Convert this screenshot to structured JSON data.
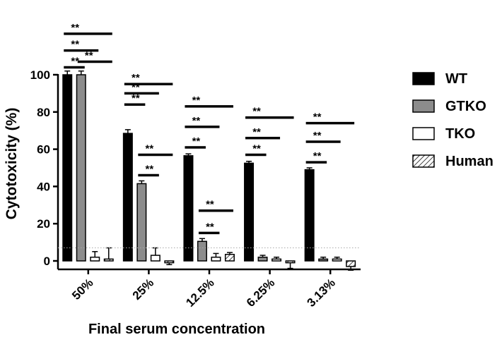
{
  "chart_data": {
    "type": "bar",
    "ylabel": "Cytotoxicity (%)",
    "xlabel": "Final serum concentration",
    "categories": [
      "50%",
      "25%",
      "12.5%",
      "6.25%",
      "3.13%"
    ],
    "ylim": [
      0,
      100
    ],
    "yticks": [
      "0",
      "20",
      "40",
      "60",
      "80",
      "100"
    ],
    "grid": false,
    "legend_position": "right",
    "series": [
      {
        "name": "WT",
        "fill": "solid-black",
        "values": [
          100,
          68.5,
          56.5,
          52.5,
          49
        ],
        "errors": [
          2,
          2,
          1,
          1,
          1
        ]
      },
      {
        "name": "GTKO",
        "fill": "gray",
        "values": [
          100,
          41.5,
          10.5,
          2,
          1
        ],
        "errors": [
          2,
          1.5,
          1.5,
          1,
          1
        ]
      },
      {
        "name": "TKO",
        "fill": "white",
        "values": [
          2,
          3,
          2,
          1,
          1
        ],
        "errors": [
          3,
          4,
          2,
          1,
          1
        ]
      },
      {
        "name": "Human",
        "fill": "hatched",
        "values": [
          1,
          -1,
          3.5,
          -1,
          -3
        ],
        "errors": [
          6,
          1,
          1,
          3,
          2
        ]
      }
    ],
    "baseline_dotted": 7,
    "significance": [
      {
        "category": 0,
        "from": 0,
        "to": 1,
        "level": 104,
        "label": "**"
      },
      {
        "category": 0,
        "from": 0,
        "to": 2,
        "level": 113,
        "label": "**"
      },
      {
        "category": 0,
        "from": 0,
        "to": 3,
        "level": 122,
        "label": "**"
      },
      {
        "category": 0,
        "from": 1,
        "to": 3,
        "level": 107,
        "label": "**"
      },
      {
        "category": 1,
        "from": 0,
        "to": 1,
        "level": 84,
        "label": "**"
      },
      {
        "category": 1,
        "from": 0,
        "to": 2,
        "level": 90,
        "label": "**"
      },
      {
        "category": 1,
        "from": 0,
        "to": 3,
        "level": 95,
        "label": "**"
      },
      {
        "category": 1,
        "from": 1,
        "to": 2,
        "level": 46,
        "label": "**"
      },
      {
        "category": 1,
        "from": 1,
        "to": 3,
        "level": 57,
        "label": "**"
      },
      {
        "category": 2,
        "from": 0,
        "to": 1,
        "level": 61,
        "label": "**"
      },
      {
        "category": 2,
        "from": 0,
        "to": 2,
        "level": 72,
        "label": "**"
      },
      {
        "category": 2,
        "from": 0,
        "to": 3,
        "level": 83,
        "label": "**"
      },
      {
        "category": 2,
        "from": 1,
        "to": 2,
        "level": 15,
        "label": "**"
      },
      {
        "category": 2,
        "from": 1,
        "to": 3,
        "level": 27,
        "label": "**"
      },
      {
        "category": 3,
        "from": 0,
        "to": 1,
        "level": 57,
        "label": "**"
      },
      {
        "category": 3,
        "from": 0,
        "to": 2,
        "level": 66,
        "label": "**"
      },
      {
        "category": 3,
        "from": 0,
        "to": 3,
        "level": 77,
        "label": "**"
      },
      {
        "category": 4,
        "from": 0,
        "to": 1,
        "level": 53,
        "label": "**"
      },
      {
        "category": 4,
        "from": 0,
        "to": 2,
        "level": 64,
        "label": "**"
      },
      {
        "category": 4,
        "from": 0,
        "to": 3,
        "level": 74,
        "label": "**"
      }
    ]
  }
}
